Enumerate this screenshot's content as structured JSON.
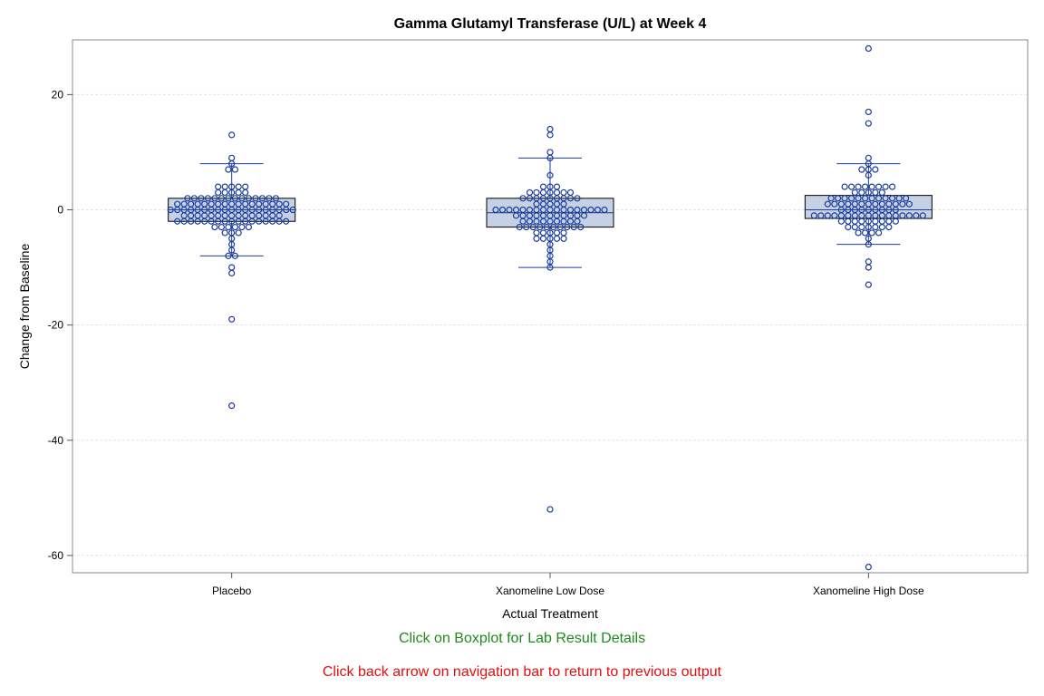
{
  "chart_data": {
    "type": "box",
    "title": "Gamma Glutamyl Transferase (U/L) at Week 4",
    "xlabel": "Actual Treatment",
    "ylabel": "Change from Baseline",
    "ylim": [
      -63,
      29.5
    ],
    "yticks": [
      20,
      0,
      -20,
      -40,
      -60
    ],
    "grid": true,
    "colors": {
      "box_fill": "#c6d2e4",
      "line": "#1a3c9c",
      "marker": "#1a3c9c"
    },
    "categories": [
      "Placebo",
      "Xanomeline Low Dose",
      "Xanomeline High Dose"
    ],
    "boxes": [
      {
        "q1": -2,
        "median": 0,
        "q3": 2,
        "whisker_low": -8,
        "whisker_high": 8,
        "outliers": [
          13,
          9,
          -10,
          -11,
          -19,
          -34
        ]
      },
      {
        "q1": -3,
        "median": -0.5,
        "q3": 2,
        "whisker_low": -10,
        "whisker_high": 9,
        "outliers": [
          14,
          13,
          10,
          -52
        ]
      },
      {
        "q1": -1.5,
        "median": 0,
        "q3": 2.5,
        "whisker_low": -6,
        "whisker_high": 8,
        "outliers": [
          28,
          17,
          15,
          9,
          -9,
          -10,
          -13,
          -62
        ]
      }
    ],
    "points": [
      [
        {
          "y": 13,
          "n": 1
        },
        {
          "y": 9,
          "n": 1
        },
        {
          "y": 8,
          "n": 1
        },
        {
          "y": 7,
          "n": 2
        },
        {
          "y": 4,
          "n": 5
        },
        {
          "y": 3,
          "n": 5
        },
        {
          "y": 2,
          "n": 14
        },
        {
          "y": 1,
          "n": 17
        },
        {
          "y": 0,
          "n": 19
        },
        {
          "y": -1,
          "n": 15
        },
        {
          "y": -2,
          "n": 17
        },
        {
          "y": -3,
          "n": 6
        },
        {
          "y": -4,
          "n": 3
        },
        {
          "y": -5,
          "n": 1
        },
        {
          "y": -6,
          "n": 1
        },
        {
          "y": -7,
          "n": 1
        },
        {
          "y": -8,
          "n": 2
        },
        {
          "y": -10,
          "n": 1
        },
        {
          "y": -11,
          "n": 1
        },
        {
          "y": -19,
          "n": 1
        },
        {
          "y": -34,
          "n": 1
        }
      ],
      [
        {
          "y": 14,
          "n": 1
        },
        {
          "y": 13,
          "n": 1
        },
        {
          "y": 10,
          "n": 1
        },
        {
          "y": 9,
          "n": 1
        },
        {
          "y": 6,
          "n": 1
        },
        {
          "y": 4,
          "n": 3
        },
        {
          "y": 3,
          "n": 7
        },
        {
          "y": 2,
          "n": 9
        },
        {
          "y": 1,
          "n": 5
        },
        {
          "y": 0,
          "n": 17
        },
        {
          "y": -1,
          "n": 11
        },
        {
          "y": -2,
          "n": 9
        },
        {
          "y": -3,
          "n": 10
        },
        {
          "y": -4,
          "n": 5
        },
        {
          "y": -5,
          "n": 5
        },
        {
          "y": -6,
          "n": 1
        },
        {
          "y": -7,
          "n": 1
        },
        {
          "y": -8,
          "n": 1
        },
        {
          "y": -9,
          "n": 1
        },
        {
          "y": -10,
          "n": 1
        },
        {
          "y": -52,
          "n": 1
        }
      ],
      [
        {
          "y": 28,
          "n": 1
        },
        {
          "y": 17,
          "n": 1
        },
        {
          "y": 15,
          "n": 1
        },
        {
          "y": 9,
          "n": 1
        },
        {
          "y": 8,
          "n": 1
        },
        {
          "y": 7,
          "n": 3
        },
        {
          "y": 6,
          "n": 1
        },
        {
          "y": 4,
          "n": 8
        },
        {
          "y": 3,
          "n": 5
        },
        {
          "y": 2,
          "n": 12
        },
        {
          "y": 1,
          "n": 13
        },
        {
          "y": 0,
          "n": 9
        },
        {
          "y": -1,
          "n": 17
        },
        {
          "y": -2,
          "n": 9
        },
        {
          "y": -3,
          "n": 7
        },
        {
          "y": -4,
          "n": 4
        },
        {
          "y": -5,
          "n": 1
        },
        {
          "y": -6,
          "n": 1
        },
        {
          "y": -9,
          "n": 1
        },
        {
          "y": -10,
          "n": 1
        },
        {
          "y": -13,
          "n": 1
        },
        {
          "y": -62,
          "n": 1
        }
      ]
    ]
  },
  "notes": {
    "click_boxplot": "Click on Boxplot for Lab Result Details",
    "click_back": "Click back arrow on navigation bar to return to previous output"
  }
}
